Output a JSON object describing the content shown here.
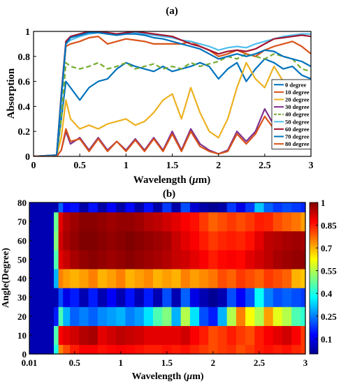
{
  "chart_data": [
    {
      "type": "line",
      "title": "(a)",
      "xlabel": "Wavelength (μm)",
      "xlabel_main": "Wavelength (",
      "xlabel_mu": "μ",
      "xlabel_unit": "m)",
      "ylabel": "Absorption",
      "xlim": [
        0,
        3
      ],
      "ylim": [
        0,
        1
      ],
      "xticks": [
        0,
        0.5,
        1,
        1.5,
        2,
        2.5,
        3
      ],
      "xtick_labels": [
        "0",
        "0.5",
        "1",
        "1.5",
        "2",
        "2.5",
        "3"
      ],
      "yticks": [
        0,
        0.2,
        0.4,
        0.6,
        0.8,
        1
      ],
      "ytick_labels": [
        "0",
        "0.2",
        "0.4",
        "0.6",
        "0.8",
        "1"
      ],
      "legend_position": "right",
      "x": [
        0,
        0.25,
        0.3,
        0.35,
        0.4,
        0.5,
        0.6,
        0.7,
        0.8,
        0.9,
        1.0,
        1.1,
        1.2,
        1.3,
        1.4,
        1.5,
        1.6,
        1.7,
        1.8,
        1.9,
        2.0,
        2.1,
        2.2,
        2.3,
        2.4,
        2.5,
        2.6,
        2.7,
        2.8,
        2.9,
        3.0
      ],
      "series": [
        {
          "name": "0 degree",
          "color": "#0072BD",
          "dash": false,
          "values": [
            0,
            0.01,
            0.3,
            0.6,
            0.55,
            0.45,
            0.55,
            0.6,
            0.62,
            0.7,
            0.75,
            0.72,
            0.7,
            0.68,
            0.72,
            0.68,
            0.7,
            0.72,
            0.75,
            0.72,
            0.62,
            0.7,
            0.75,
            0.6,
            0.7,
            0.78,
            0.75,
            0.7,
            0.72,
            0.65,
            0.62
          ]
        },
        {
          "name": "10 degree",
          "color": "#D95319",
          "dash": false,
          "values": [
            0,
            0.01,
            0.45,
            0.88,
            0.9,
            0.92,
            0.95,
            0.96,
            0.9,
            0.92,
            0.94,
            0.93,
            0.92,
            0.9,
            0.9,
            0.9,
            0.9,
            0.92,
            0.88,
            0.85,
            0.8,
            0.82,
            0.85,
            0.82,
            0.8,
            0.85,
            0.88,
            0.9,
            0.92,
            0.88,
            0.82
          ]
        },
        {
          "name": "20 degree",
          "color": "#EDB120",
          "dash": false,
          "values": [
            0,
            0.01,
            0.15,
            0.45,
            0.3,
            0.22,
            0.25,
            0.22,
            0.26,
            0.28,
            0.3,
            0.25,
            0.28,
            0.35,
            0.45,
            0.5,
            0.3,
            0.55,
            0.35,
            0.2,
            0.15,
            0.3,
            0.55,
            0.75,
            0.62,
            0.55,
            0.72,
            0.6,
            0.55,
            0.45,
            0.42
          ]
        },
        {
          "name": "30 degree",
          "color": "#7E2F8E",
          "dash": false,
          "values": [
            0,
            0,
            0.05,
            0.2,
            0.1,
            0.15,
            0.05,
            0.15,
            0.05,
            0.12,
            0.05,
            0.14,
            0.05,
            0.15,
            0.05,
            0.2,
            0.05,
            0.22,
            0.1,
            0.05,
            0.02,
            0.05,
            0.2,
            0.12,
            0.2,
            0.38,
            0.25,
            0.2,
            0.22,
            0.2,
            0.18
          ]
        },
        {
          "name": "40 degree",
          "color": "#77AC30",
          "dash": true,
          "values": [
            0,
            0.01,
            0.3,
            0.75,
            0.72,
            0.7,
            0.72,
            0.75,
            0.7,
            0.72,
            0.75,
            0.7,
            0.72,
            0.74,
            0.7,
            0.72,
            0.7,
            0.75,
            0.72,
            0.74,
            0.76,
            0.8,
            0.78,
            0.82,
            0.8,
            0.78,
            0.82,
            0.8,
            0.78,
            0.7,
            0.68
          ]
        },
        {
          "name": "50 degree",
          "color": "#4DBEEE",
          "dash": false,
          "values": [
            0,
            0.01,
            0.45,
            0.9,
            0.93,
            0.96,
            0.98,
            0.99,
            0.98,
            0.97,
            0.98,
            0.99,
            0.98,
            0.97,
            0.96,
            0.95,
            0.93,
            0.92,
            0.9,
            0.88,
            0.85,
            0.87,
            0.88,
            0.87,
            0.9,
            0.92,
            0.94,
            0.96,
            0.97,
            0.98,
            0.98
          ]
        },
        {
          "name": "60 degree",
          "color": "#A2142F",
          "dash": false,
          "values": [
            0,
            0.01,
            0.5,
            0.92,
            0.96,
            0.98,
            1.0,
            1.0,
            0.99,
            0.98,
            0.99,
            1.0,
            0.99,
            0.98,
            0.97,
            0.96,
            0.93,
            0.9,
            0.88,
            0.85,
            0.82,
            0.84,
            0.85,
            0.84,
            0.86,
            0.9,
            0.94,
            0.95,
            0.96,
            0.97,
            0.96
          ]
        },
        {
          "name": "70 degree",
          "color": "#0072BD",
          "dash": false,
          "values": [
            0,
            0.01,
            0.48,
            0.9,
            0.95,
            0.97,
            0.99,
            0.99,
            0.98,
            0.97,
            0.98,
            0.98,
            0.97,
            0.95,
            0.94,
            0.92,
            0.9,
            0.88,
            0.86,
            0.82,
            0.78,
            0.8,
            0.82,
            0.8,
            0.82,
            0.85,
            0.84,
            0.8,
            0.78,
            0.76,
            0.72
          ]
        },
        {
          "name": "80 degree",
          "color": "#D95319",
          "dash": false,
          "values": [
            0,
            0,
            0.05,
            0.22,
            0.12,
            0.14,
            0.04,
            0.14,
            0.04,
            0.12,
            0.04,
            0.13,
            0.04,
            0.14,
            0.04,
            0.18,
            0.04,
            0.2,
            0.08,
            0.04,
            0.02,
            0.04,
            0.18,
            0.1,
            0.18,
            0.32,
            0.22,
            0.18,
            0.2,
            0.18,
            0.16
          ]
        }
      ]
    },
    {
      "type": "heatmap",
      "title": "(b)",
      "xlabel": "Wavelength (μm)",
      "xlabel_main": "Wavelength (",
      "xlabel_mu": "μ",
      "xlabel_unit": "m)",
      "ylabel": "Angle(Degree)",
      "xlim": [
        0.01,
        3
      ],
      "ylim": [
        0,
        80
      ],
      "xticks": [
        0.01,
        0.5,
        1,
        1.5,
        2,
        2.5,
        3
      ],
      "xtick_labels": [
        "0.01",
        "0.5",
        "1",
        "1.5",
        "2",
        "2.5",
        "3"
      ],
      "yticks": [
        0,
        10,
        20,
        30,
        40,
        50,
        60,
        70,
        80
      ],
      "ytick_labels": [
        "0",
        "10",
        "20",
        "30",
        "40",
        "50",
        "60",
        "70",
        "80"
      ],
      "colorbar_ticks": [
        0.1,
        0.25,
        0.4,
        0.55,
        0.7,
        0.85,
        1
      ],
      "colorbar_labels": [
        "0.1",
        "0.25",
        "0.4",
        "0.55",
        "0.7",
        "0.85",
        "1"
      ],
      "colorbar_range": [
        0,
        1
      ],
      "colormap": "jet",
      "x": [
        0.01,
        0.25,
        0.3,
        0.35,
        0.4,
        0.5,
        0.6,
        0.7,
        0.8,
        0.9,
        1.0,
        1.1,
        1.2,
        1.3,
        1.4,
        1.5,
        1.6,
        1.7,
        1.8,
        1.9,
        2.0,
        2.1,
        2.2,
        2.3,
        2.4,
        2.5,
        2.6,
        2.7,
        2.8,
        2.9,
        3.0
      ],
      "y": [
        0,
        10,
        20,
        30,
        40,
        50,
        60,
        70,
        80
      ],
      "z": [
        [
          0.05,
          0.05,
          0.4,
          0.75,
          0.8,
          0.85,
          0.88,
          0.88,
          0.86,
          0.87,
          0.88,
          0.87,
          0.86,
          0.85,
          0.85,
          0.86,
          0.85,
          0.86,
          0.84,
          0.82,
          0.8,
          0.82,
          0.83,
          0.8,
          0.82,
          0.85,
          0.86,
          0.85,
          0.86,
          0.84,
          0.82
        ],
        [
          0.05,
          0.05,
          0.45,
          0.88,
          0.9,
          0.92,
          0.95,
          0.96,
          0.9,
          0.92,
          0.94,
          0.93,
          0.92,
          0.9,
          0.9,
          0.9,
          0.9,
          0.92,
          0.88,
          0.85,
          0.8,
          0.82,
          0.85,
          0.82,
          0.8,
          0.85,
          0.88,
          0.9,
          0.92,
          0.88,
          0.82
        ],
        [
          0.05,
          0.05,
          0.15,
          0.45,
          0.3,
          0.22,
          0.25,
          0.22,
          0.26,
          0.28,
          0.3,
          0.25,
          0.28,
          0.35,
          0.45,
          0.5,
          0.3,
          0.55,
          0.35,
          0.2,
          0.15,
          0.3,
          0.55,
          0.75,
          0.62,
          0.55,
          0.72,
          0.6,
          0.55,
          0.45,
          0.42
        ],
        [
          0.05,
          0.05,
          0.05,
          0.2,
          0.1,
          0.15,
          0.05,
          0.15,
          0.05,
          0.12,
          0.05,
          0.14,
          0.05,
          0.15,
          0.05,
          0.2,
          0.05,
          0.22,
          0.1,
          0.05,
          0.02,
          0.05,
          0.2,
          0.12,
          0.2,
          0.38,
          0.25,
          0.2,
          0.22,
          0.2,
          0.18
        ],
        [
          0.05,
          0.05,
          0.3,
          0.75,
          0.72,
          0.7,
          0.72,
          0.75,
          0.7,
          0.72,
          0.75,
          0.7,
          0.72,
          0.74,
          0.7,
          0.72,
          0.7,
          0.75,
          0.72,
          0.74,
          0.76,
          0.8,
          0.78,
          0.82,
          0.8,
          0.78,
          0.82,
          0.8,
          0.78,
          0.7,
          0.68
        ],
        [
          0.05,
          0.05,
          0.45,
          0.9,
          0.93,
          0.96,
          0.98,
          0.99,
          0.98,
          0.97,
          0.98,
          0.99,
          0.98,
          0.97,
          0.96,
          0.95,
          0.93,
          0.92,
          0.9,
          0.88,
          0.85,
          0.87,
          0.88,
          0.87,
          0.9,
          0.92,
          0.94,
          0.96,
          0.97,
          0.98,
          0.98
        ],
        [
          0.05,
          0.05,
          0.5,
          0.92,
          0.96,
          0.98,
          1.0,
          1.0,
          0.99,
          0.98,
          0.99,
          1.0,
          0.99,
          0.98,
          0.97,
          0.96,
          0.93,
          0.9,
          0.88,
          0.85,
          0.82,
          0.84,
          0.85,
          0.84,
          0.86,
          0.9,
          0.94,
          0.95,
          0.96,
          0.97,
          0.96
        ],
        [
          0.05,
          0.05,
          0.48,
          0.9,
          0.95,
          0.97,
          0.99,
          0.99,
          0.98,
          0.97,
          0.98,
          0.98,
          0.97,
          0.95,
          0.94,
          0.92,
          0.9,
          0.88,
          0.86,
          0.82,
          0.78,
          0.8,
          0.82,
          0.8,
          0.82,
          0.85,
          0.84,
          0.8,
          0.78,
          0.76,
          0.72
        ],
        [
          0.05,
          0.05,
          0.05,
          0.22,
          0.12,
          0.14,
          0.04,
          0.14,
          0.04,
          0.12,
          0.04,
          0.13,
          0.04,
          0.14,
          0.04,
          0.18,
          0.04,
          0.2,
          0.08,
          0.04,
          0.02,
          0.04,
          0.18,
          0.1,
          0.18,
          0.32,
          0.22,
          0.18,
          0.2,
          0.18,
          0.16
        ]
      ]
    }
  ]
}
